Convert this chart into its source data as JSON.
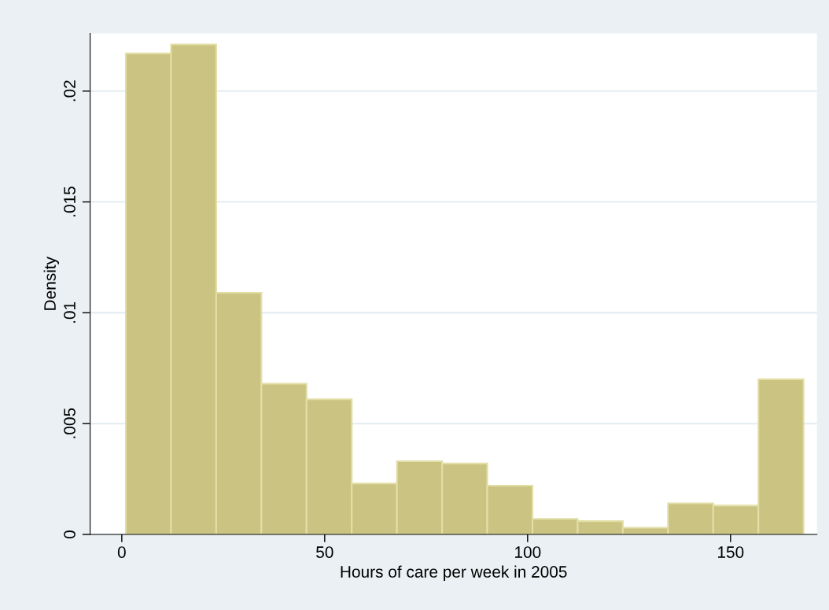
{
  "chart_data": {
    "type": "histogram",
    "xlabel": "Hours of care per week in 2005",
    "ylabel": "Density",
    "bins": [
      1,
      12.133,
      23.267,
      34.4,
      45.533,
      56.667,
      67.8,
      78.933,
      90.067,
      101.2,
      112.333,
      123.467,
      134.6,
      145.733,
      156.867,
      168
    ],
    "values": [
      0.0217,
      0.0221,
      0.0109,
      0.0068,
      0.0061,
      0.0023,
      0.0033,
      0.0032,
      0.0022,
      0.0007,
      0.0006,
      0.0003,
      0.0014,
      0.0013,
      0.007
    ],
    "color": "#cbc381",
    "xlim": [
      -7.8,
      171.3
    ],
    "ylim": [
      0,
      0.0226
    ],
    "xticks": [
      0,
      50,
      100,
      150
    ],
    "yticks": [
      0,
      {
        "value": 0.005,
        "label": ".005"
      },
      {
        "value": 0.01,
        "label": ".01"
      },
      {
        "value": 0.015,
        "label": ".015"
      },
      {
        "value": 0.02,
        "label": ".02"
      }
    ],
    "grid": "y",
    "legend": false
  }
}
